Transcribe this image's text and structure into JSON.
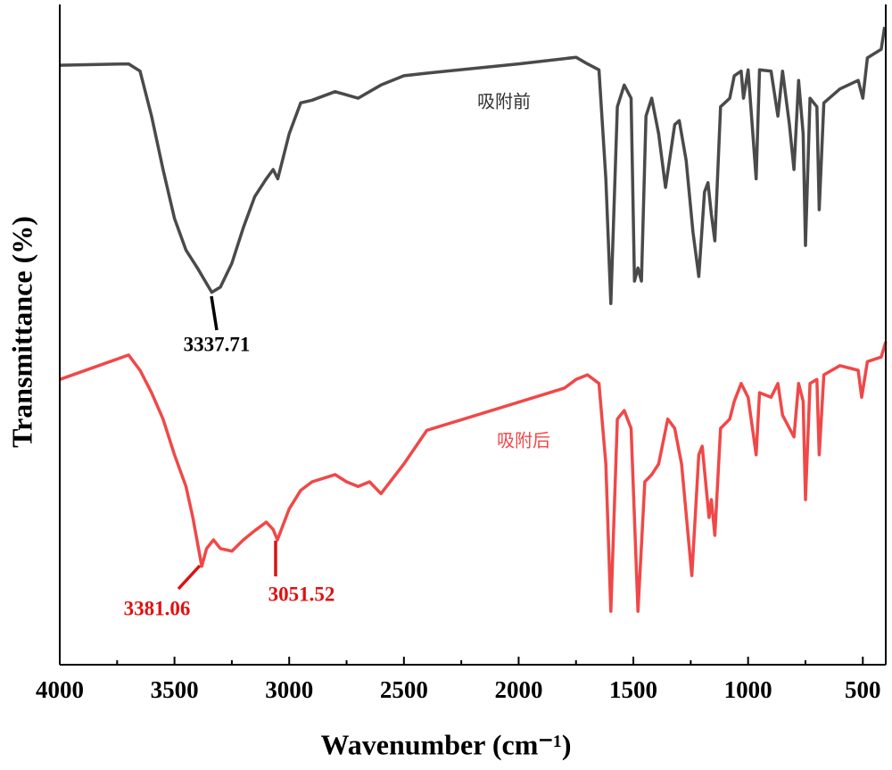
{
  "chart_data": {
    "type": "line",
    "xlabel": "Wavenumber (cm⁻¹)",
    "ylabel": "Transmittance (%)",
    "xlim": [
      4000,
      400
    ],
    "ylim": [
      0,
      100
    ],
    "xticks": [
      4000,
      3500,
      3000,
      2500,
      2000,
      1500,
      1000,
      500
    ],
    "xminorticks": [
      3750,
      3250,
      2750,
      2250,
      1750,
      1250,
      750
    ],
    "series": [
      {
        "name": "吸附前",
        "color": "#4a4a4a",
        "x": [
          4000,
          3700,
          3650,
          3600,
          3550,
          3500,
          3450,
          3400,
          3337.71,
          3300,
          3250,
          3200,
          3150,
          3100,
          3070,
          3050,
          3000,
          2950,
          2900,
          2800,
          2700,
          2600,
          2500,
          2400,
          2000,
          1750,
          1700,
          1650,
          1620,
          1598,
          1570,
          1540,
          1510,
          1495,
          1480,
          1465,
          1445,
          1420,
          1390,
          1360,
          1320,
          1300,
          1270,
          1240,
          1215,
          1190,
          1175,
          1160,
          1145,
          1120,
          1080,
          1060,
          1030,
          1020,
          1000,
          965,
          950,
          900,
          870,
          850,
          820,
          800,
          780,
          760,
          750,
          730,
          700,
          690,
          670,
          600,
          520,
          500,
          480,
          420,
          405
        ],
        "values": [
          90.8,
          91,
          89.9,
          83.1,
          75,
          67.6,
          62.8,
          60.1,
          56.4,
          57.2,
          60.8,
          66.2,
          70.9,
          73.6,
          75,
          73.6,
          80.4,
          85.1,
          85.5,
          86.8,
          85.8,
          87.8,
          89.2,
          89.6,
          91,
          92,
          91,
          90.1,
          73.6,
          54.7,
          84.5,
          87.8,
          85.8,
          58.1,
          60.1,
          58.1,
          83.1,
          85.8,
          80.4,
          72.3,
          81.8,
          82.4,
          76.4,
          65.5,
          58.8,
          71.6,
          73,
          68.2,
          64.2,
          84.5,
          85.8,
          89.2,
          89.9,
          85.8,
          90.1,
          73.6,
          90.1,
          89.9,
          83.1,
          89.9,
          81.8,
          75,
          88.5,
          80.4,
          63.5,
          85.8,
          84.5,
          68.9,
          85.1,
          87.2,
          88.5,
          85.8,
          91.9,
          93.2,
          96.6
        ]
      },
      {
        "name": "吸附后",
        "color": "#f04848",
        "x": [
          4000,
          3700,
          3650,
          3600,
          3550,
          3500,
          3450,
          3420,
          3381.06,
          3360,
          3330,
          3300,
          3250,
          3200,
          3150,
          3100,
          3070,
          3051.52,
          3000,
          2950,
          2900,
          2800,
          2750,
          2700,
          2650,
          2600,
          2500,
          2400,
          1800,
          1750,
          1700,
          1650,
          1620,
          1598,
          1570,
          1540,
          1510,
          1480,
          1450,
          1420,
          1390,
          1350,
          1320,
          1290,
          1245,
          1215,
          1200,
          1170,
          1160,
          1145,
          1120,
          1080,
          1060,
          1030,
          1000,
          965,
          950,
          900,
          870,
          850,
          800,
          780,
          760,
          750,
          730,
          700,
          690,
          670,
          600,
          520,
          505,
          480,
          420,
          400
        ],
        "values": [
          43.2,
          46.9,
          44.6,
          41.2,
          37.2,
          31.8,
          27,
          22.3,
          14.9,
          17.6,
          18.9,
          17.6,
          17.2,
          18.9,
          20.3,
          21.6,
          20.5,
          18.9,
          23.6,
          26.4,
          27.7,
          28.8,
          27.7,
          27,
          27.7,
          25.9,
          30.4,
          35.5,
          41.9,
          43.2,
          43.9,
          42.6,
          30.4,
          8.1,
          37.2,
          38.5,
          35.8,
          8.1,
          27.7,
          28.8,
          30.4,
          37.2,
          35.8,
          30.4,
          13.5,
          31.8,
          33.1,
          22.3,
          25,
          19.6,
          35.8,
          37.2,
          39.9,
          42.6,
          40.5,
          31.8,
          41.2,
          40.5,
          42.6,
          37.8,
          34.5,
          42.6,
          39.9,
          25,
          42.6,
          43.2,
          31.8,
          43.9,
          45.3,
          44.6,
          40.5,
          45.9,
          46.6,
          48.9
        ]
      }
    ],
    "annotations": [
      {
        "text": "3337.71",
        "color": "#000000"
      },
      {
        "text": "3381.06",
        "color": "#e01010"
      },
      {
        "text": "3051.52",
        "color": "#e01010"
      }
    ]
  }
}
